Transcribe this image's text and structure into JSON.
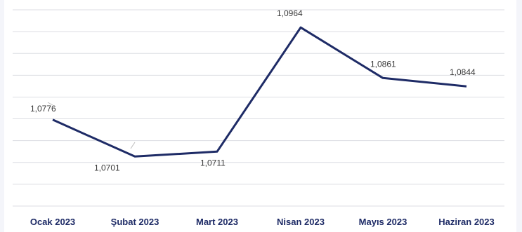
{
  "chart_data": {
    "type": "line",
    "categories": [
      "Ocak 2023",
      "Şubat 2023",
      "Mart 2023",
      "Nisan 2023",
      "Mayıs 2023",
      "Haziran 2023"
    ],
    "series": [
      {
        "values": [
          1.0776,
          1.0701,
          1.0711,
          1.0964,
          1.0861,
          1.0844
        ]
      }
    ],
    "data_labels": [
      "1,0776",
      "1,0701",
      "1,0711",
      "1,0964",
      "1,0861",
      "1,0844"
    ],
    "ylim": [
      1.06,
      1.1
    ],
    "grid": true,
    "legend": "none",
    "line_color": "#1e2b66",
    "tick_color": "#1e2b66"
  }
}
